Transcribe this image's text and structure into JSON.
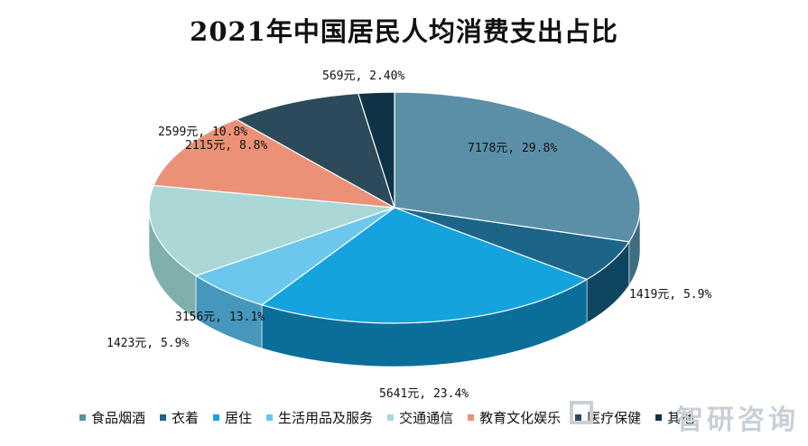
{
  "chart_data": {
    "type": "pie",
    "title": "2021年中国居民人均消费支出占比",
    "unit": "元",
    "slices": [
      {
        "name": "食品烟酒",
        "value": 7178,
        "percent": 29.8,
        "label": "7178元, 29.8%",
        "color": "#5b8fa8",
        "side": "#3f6d84"
      },
      {
        "name": "衣着",
        "value": 1419,
        "percent": 5.9,
        "label": "1419元, 5.9%",
        "color": "#1c6488",
        "side": "#0f4560"
      },
      {
        "name": "居住",
        "value": 5641,
        "percent": 23.4,
        "label": "5641元, 23.4%",
        "color": "#14a3dd",
        "side": "#0b6e99"
      },
      {
        "name": "生活用品及服务",
        "value": 1423,
        "percent": 5.9,
        "label": "1423元, 5.9%",
        "color": "#6cc7ee",
        "side": "#4597bb"
      },
      {
        "name": "交通通信",
        "value": 3156,
        "percent": 13.1,
        "label": "3156元, 13.1%",
        "color": "#a9d8d6",
        "side": "#7fb0ae"
      },
      {
        "name": "教育文化娱乐",
        "value": 2599,
        "percent": 10.8,
        "label": "2599元, 10.8%",
        "color": "#ea9177",
        "side": "#c46b53"
      },
      {
        "name": "医疗保健",
        "value": 2115,
        "percent": 8.8,
        "label": "2115元, 8.8%",
        "color": "#2d4a5a",
        "side": "#1c3140"
      },
      {
        "name": "其他",
        "value": 569,
        "percent": 2.4,
        "label": "569元, 2.40%",
        "color": "#0e3347",
        "side": "#08202e"
      }
    ],
    "legend": {
      "position": "bottom"
    }
  },
  "watermark": "智研咨询"
}
